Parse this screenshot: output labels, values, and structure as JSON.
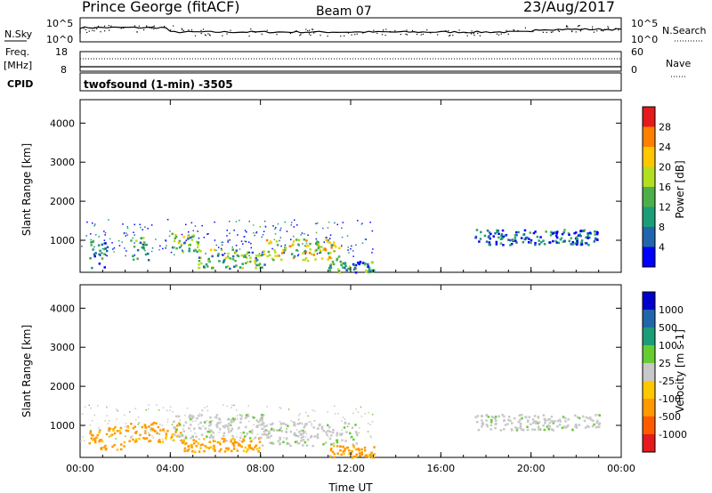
{
  "header": {
    "station": "Prince George (fitACF)",
    "beam": "Beam 07",
    "date": "23/Aug/2017"
  },
  "summary": {
    "nsky_label": "N.Sky",
    "nsearch_label": "N.Search",
    "noise_ticks": [
      "10^5",
      "10^0"
    ],
    "freq_label": "Freq.",
    "freq_unit": "[MHz]",
    "freq_ticks": [
      "18",
      "8"
    ],
    "nave_ticks": [
      "60",
      "0"
    ],
    "nave_label": "Nave",
    "cpid_label": "CPID",
    "cpid_value": "twofsound (1-min) -3505"
  },
  "chart_data": [
    {
      "type": "heatmap",
      "name": "Power",
      "ylabel": "Slant Range [km]",
      "xlabel": "",
      "xlim": [
        "00:00",
        "00:00"
      ],
      "ylim": [
        180,
        4600
      ],
      "x_ticks": [
        "00:00",
        "04:00",
        "08:00",
        "12:00",
        "16:00",
        "20:00",
        "00:00"
      ],
      "y_ticks": [
        1000,
        2000,
        3000,
        4000
      ],
      "colorbar": {
        "label": "Power [dB]",
        "ticks": [
          "28",
          "24",
          "20",
          "16",
          "12",
          "8",
          "4"
        ],
        "colors": [
          "#e41a1c",
          "#ff7f00",
          "#ffc700",
          "#b2df20",
          "#4daf4a",
          "#1b9e77",
          "#2166ac",
          "#0000ff"
        ]
      },
      "regions": [
        {
          "t0": 0.3,
          "t1": 1.2,
          "r0": 300,
          "r1": 1100,
          "level": 0.3
        },
        {
          "t0": 2.2,
          "t1": 3.0,
          "r0": 500,
          "r1": 1100,
          "level": 0.45
        },
        {
          "t0": 4.0,
          "t1": 5.2,
          "r0": 700,
          "r1": 1200,
          "level": 0.55
        },
        {
          "t0": 5.2,
          "t1": 8.2,
          "r0": 300,
          "r1": 800,
          "level": 0.5
        },
        {
          "t0": 8.2,
          "t1": 11.5,
          "r0": 500,
          "r1": 1050,
          "level": 0.65
        },
        {
          "t0": 11.0,
          "t1": 13.0,
          "r0": 200,
          "r1": 500,
          "level": 0.35
        },
        {
          "t0": 17.5,
          "t1": 23.0,
          "r0": 900,
          "r1": 1300,
          "level": 0.2
        }
      ]
    },
    {
      "type": "heatmap",
      "name": "Velocity",
      "ylabel": "Slant Range [km]",
      "xlabel": "Time UT",
      "xlim": [
        "00:00",
        "00:00"
      ],
      "ylim": [
        180,
        4600
      ],
      "x_ticks": [
        "00:00",
        "04:00",
        "08:00",
        "12:00",
        "16:00",
        "20:00",
        "00:00"
      ],
      "y_ticks": [
        1000,
        2000,
        3000,
        4000
      ],
      "colorbar": {
        "label": "Velocity [m s-1]",
        "ticks": [
          "1000",
          "500",
          "100",
          "25",
          "-25",
          "-100",
          "-500",
          "-1000"
        ],
        "colors": [
          "#0000cd",
          "#2166ac",
          "#1b9e77",
          "#66cc33",
          "#c8c8c8",
          "#ffc700",
          "#ff9900",
          "#ff5a00",
          "#e41a1c"
        ]
      },
      "regions": [
        {
          "t0": 0.3,
          "t1": 2.2,
          "r0": 400,
          "r1": 1000,
          "level": "approaching"
        },
        {
          "t0": 2.2,
          "t1": 4.5,
          "r0": 600,
          "r1": 1100,
          "level": "approaching"
        },
        {
          "t0": 4.5,
          "t1": 8.0,
          "r0": 350,
          "r1": 700,
          "level": "approaching"
        },
        {
          "t0": 4.0,
          "t1": 8.5,
          "r0": 700,
          "r1": 1300,
          "level": "low"
        },
        {
          "t0": 8.0,
          "t1": 12.5,
          "r0": 500,
          "r1": 1100,
          "level": "low"
        },
        {
          "t0": 11.0,
          "t1": 13.0,
          "r0": 200,
          "r1": 500,
          "level": "approaching"
        },
        {
          "t0": 17.5,
          "t1": 23.0,
          "r0": 900,
          "r1": 1300,
          "level": "low"
        }
      ]
    }
  ]
}
